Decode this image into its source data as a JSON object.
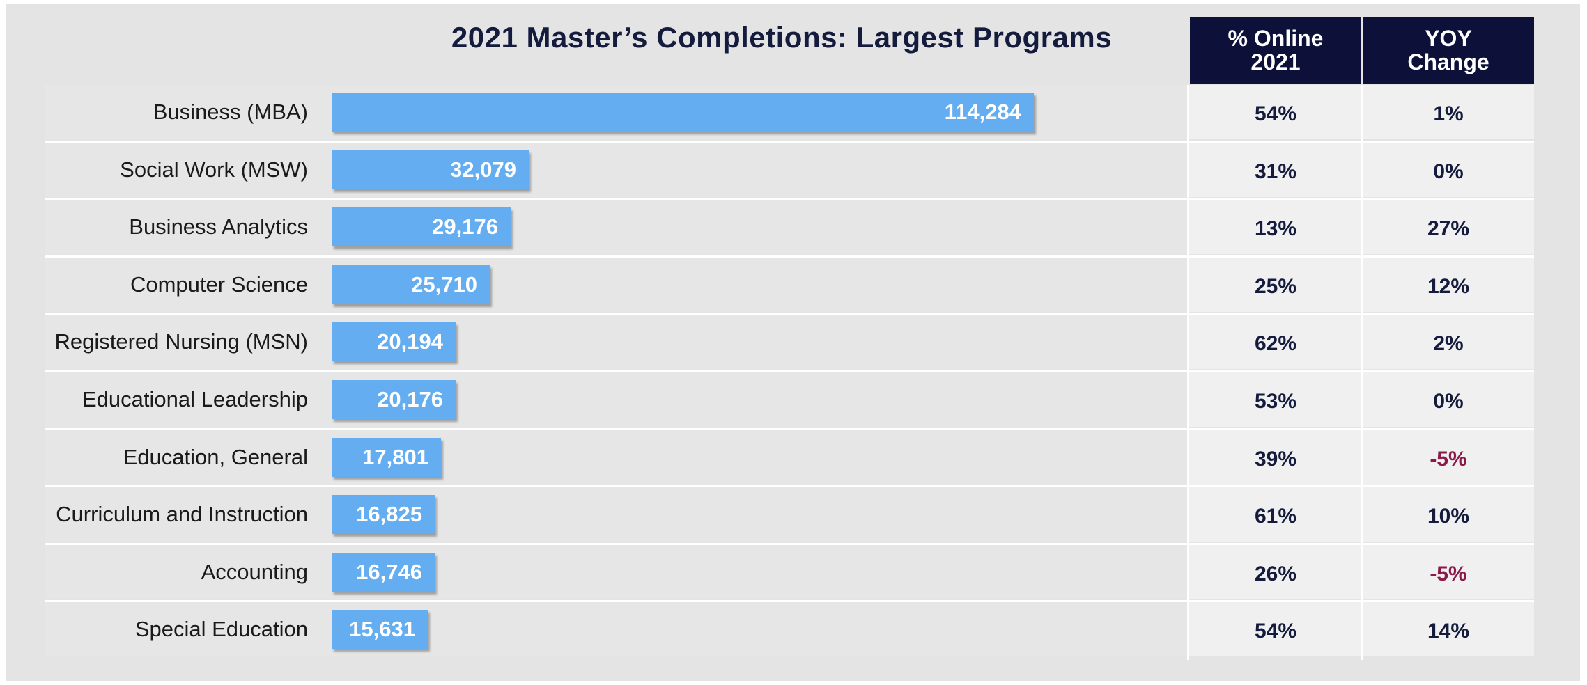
{
  "title": "2021 Master’s Completions: Largest Programs",
  "columns": {
    "online": [
      "% Online",
      "2021"
    ],
    "yoy": [
      "YOY",
      "Change"
    ]
  },
  "colors": {
    "bar": "#63adf0",
    "header_bg": "#0d1038",
    "text_dark": "#141b3c",
    "negative": "#8b1a4a"
  },
  "chart_data": {
    "type": "bar",
    "orientation": "horizontal",
    "title": "2021 Master’s Completions: Largest Programs",
    "categories": [
      "Business (MBA)",
      "Social Work (MSW)",
      "Business Analytics",
      "Computer Science",
      "Registered Nursing (MSN)",
      "Educational Leadership",
      "Education, General",
      "Curriculum and Instruction",
      "Accounting",
      "Special Education"
    ],
    "values": [
      114284,
      32079,
      29176,
      25710,
      20194,
      20176,
      17801,
      16825,
      16746,
      15631
    ],
    "value_labels": [
      "114,284",
      "32,079",
      "29,176",
      "25,710",
      "20,194",
      "20,176",
      "17,801",
      "16,825",
      "16,746",
      "15,631"
    ],
    "xlim": [
      0,
      114284
    ],
    "grid": false,
    "legend": "none"
  },
  "table": {
    "online_2021": [
      "54%",
      "31%",
      "13%",
      "25%",
      "62%",
      "53%",
      "39%",
      "61%",
      "26%",
      "54%"
    ],
    "yoy_change": [
      "1%",
      "0%",
      "27%",
      "12%",
      "2%",
      "0%",
      "-5%",
      "10%",
      "-5%",
      "14%"
    ]
  }
}
